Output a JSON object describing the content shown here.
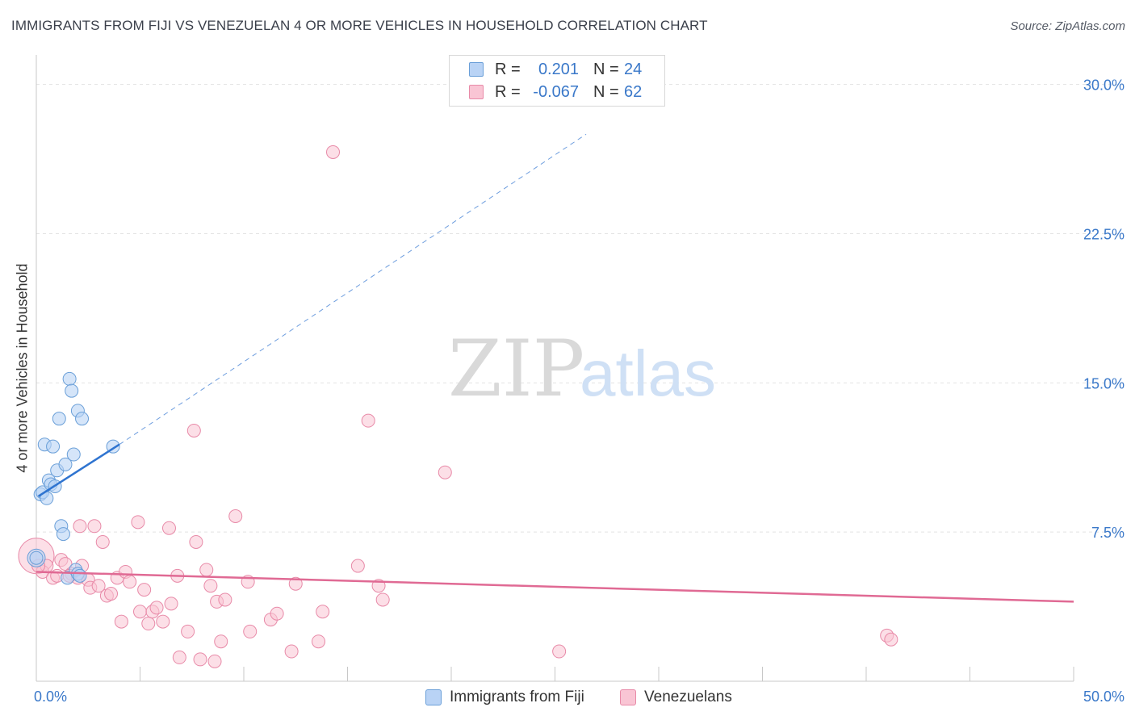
{
  "header": {
    "title": "IMMIGRANTS FROM FIJI VS VENEZUELAN 4 OR MORE VEHICLES IN HOUSEHOLD CORRELATION CHART",
    "source": "Source: ZipAtlas.com"
  },
  "watermark": {
    "zip": "ZIP",
    "atlas": "atlas"
  },
  "legend": {
    "r_label": "R =",
    "n_label": "N =",
    "series": [
      {
        "r": "0.201",
        "n": "24"
      },
      {
        "r": "-0.067",
        "n": "62"
      }
    ]
  },
  "colors": {
    "fiji_fill": "#b9d3f5",
    "fiji_stroke": "#6a9fd8",
    "fiji_line": "#2f74d0",
    "ven_fill": "#f9c5d4",
    "ven_stroke": "#e88aa8",
    "ven_line": "#e06a94",
    "tick_text": "#3a78c9",
    "grid": "#e3e3e3"
  },
  "chart_data": {
    "type": "scatter",
    "title": "IMMIGRANTS FROM FIJI VS VENEZUELAN 4 OR MORE VEHICLES IN HOUSEHOLD CORRELATION CHART",
    "xlabel": "",
    "ylabel": "4 or more Vehicles in Household",
    "xlim": [
      0,
      50
    ],
    "ylim": [
      0,
      31
    ],
    "x_tick_labels": [
      "0.0%",
      "50.0%"
    ],
    "y_ticks": [
      7.5,
      15.0,
      22.5,
      30.0
    ],
    "y_tick_labels": [
      "7.5%",
      "15.0%",
      "22.5%",
      "30.0%"
    ],
    "grid": true,
    "legend_position": "top-center",
    "series": [
      {
        "name": "Immigrants from Fiji",
        "r": 0.201,
        "n": 24,
        "trend": {
          "x0": 0.1,
          "y0": 9.3,
          "x1": 4.0,
          "y1": 11.9,
          "dashed_to_x": 26.5,
          "dashed_to_y": 27.5
        },
        "points": [
          [
            0.0,
            6.2
          ],
          [
            0.2,
            9.4
          ],
          [
            0.3,
            9.5
          ],
          [
            0.4,
            11.9
          ],
          [
            0.5,
            9.2
          ],
          [
            0.6,
            10.1
          ],
          [
            0.7,
            9.9
          ],
          [
            0.8,
            11.8
          ],
          [
            0.9,
            9.8
          ],
          [
            1.0,
            10.6
          ],
          [
            1.1,
            13.2
          ],
          [
            1.2,
            7.8
          ],
          [
            1.3,
            7.4
          ],
          [
            1.4,
            10.9
          ],
          [
            1.5,
            5.2
          ],
          [
            1.6,
            15.2
          ],
          [
            1.7,
            14.6
          ],
          [
            1.8,
            11.4
          ],
          [
            1.9,
            5.6
          ],
          [
            2.0,
            5.4
          ],
          [
            2.1,
            5.3
          ],
          [
            2.0,
            13.6
          ],
          [
            2.2,
            13.2
          ],
          [
            3.7,
            11.8
          ]
        ],
        "big_point": [
          0.0,
          6.2
        ]
      },
      {
        "name": "Venezuelans",
        "r": -0.067,
        "n": 62,
        "trend": {
          "x0": 0.0,
          "y0": 5.5,
          "x1": 50.0,
          "y1": 4.0
        },
        "points": [
          [
            0.3,
            5.5
          ],
          [
            0.5,
            5.8
          ],
          [
            0.8,
            5.2
          ],
          [
            1.0,
            5.3
          ],
          [
            1.2,
            6.1
          ],
          [
            1.4,
            5.9
          ],
          [
            1.7,
            5.4
          ],
          [
            2.0,
            5.2
          ],
          [
            2.1,
            7.8
          ],
          [
            2.2,
            5.8
          ],
          [
            2.5,
            5.1
          ],
          [
            2.6,
            4.7
          ],
          [
            2.8,
            7.8
          ],
          [
            3.0,
            4.8
          ],
          [
            3.2,
            7.0
          ],
          [
            3.4,
            4.3
          ],
          [
            3.6,
            4.4
          ],
          [
            3.9,
            5.2
          ],
          [
            4.1,
            3.0
          ],
          [
            4.3,
            5.5
          ],
          [
            4.5,
            5.0
          ],
          [
            4.9,
            8.0
          ],
          [
            5.0,
            3.5
          ],
          [
            5.2,
            4.6
          ],
          [
            5.4,
            2.9
          ],
          [
            5.6,
            3.5
          ],
          [
            5.8,
            3.7
          ],
          [
            6.1,
            3.0
          ],
          [
            6.4,
            7.7
          ],
          [
            6.5,
            3.9
          ],
          [
            6.8,
            5.3
          ],
          [
            6.9,
            1.2
          ],
          [
            7.3,
            2.5
          ],
          [
            7.6,
            12.6
          ],
          [
            7.7,
            7.0
          ],
          [
            7.9,
            1.1
          ],
          [
            8.2,
            5.6
          ],
          [
            8.4,
            4.8
          ],
          [
            8.6,
            1.0
          ],
          [
            8.7,
            4.0
          ],
          [
            8.9,
            2.0
          ],
          [
            9.1,
            4.1
          ],
          [
            9.6,
            8.3
          ],
          [
            10.2,
            5.0
          ],
          [
            10.3,
            2.5
          ],
          [
            11.3,
            3.1
          ],
          [
            11.6,
            3.4
          ],
          [
            12.3,
            1.5
          ],
          [
            12.5,
            4.9
          ],
          [
            13.6,
            2.0
          ],
          [
            13.8,
            3.5
          ],
          [
            14.3,
            26.6
          ],
          [
            15.5,
            5.8
          ],
          [
            16.0,
            13.1
          ],
          [
            16.5,
            4.8
          ],
          [
            16.7,
            4.1
          ],
          [
            19.7,
            10.5
          ],
          [
            25.2,
            1.5
          ],
          [
            41.0,
            2.3
          ],
          [
            41.2,
            2.1
          ],
          [
            0.1,
            5.8
          ],
          [
            1.6,
            5.3
          ]
        ],
        "big_point": [
          0.0,
          6.3
        ]
      }
    ]
  },
  "bottom_legend": {
    "items": [
      "Immigrants from Fiji",
      "Venezuelans"
    ]
  }
}
